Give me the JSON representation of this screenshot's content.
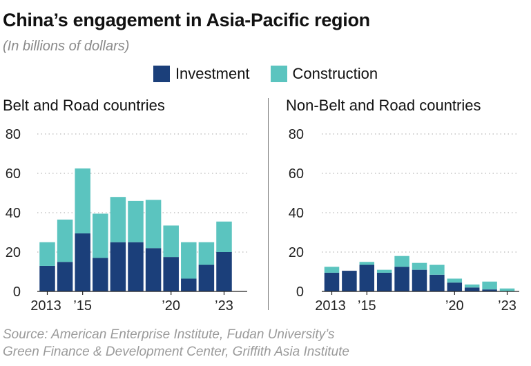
{
  "title": "China’s engagement in Asia-Pacific region",
  "subtitle": "(In billions of dollars)",
  "legend": [
    {
      "label": "Investment",
      "color": "#1b3f7a"
    },
    {
      "label": "Construction",
      "color": "#5bc4bf"
    }
  ],
  "source_lines": [
    "Source: American Enterprise Institute, Fudan University’s",
    "Green Finance & Development Center, Griffith Asia Institute"
  ],
  "chart_data": [
    {
      "type": "bar",
      "stacked": true,
      "title": "Belt and Road countries",
      "categories": [
        "2013",
        "2014",
        "2015",
        "2016",
        "2017",
        "2018",
        "2019",
        "2020",
        "2021",
        "2022",
        "2023"
      ],
      "x_tick_labels": [
        "2013",
        "’15",
        "",
        "",
        "",
        "",
        "’20",
        "",
        "",
        "’23"
      ],
      "x_tick_categories": [
        "2013",
        "2015",
        "2020",
        "2023"
      ],
      "x_tick_text": [
        "2013",
        "’15",
        "’20",
        "’23"
      ],
      "series": [
        {
          "name": "Investment",
          "values": [
            13,
            15,
            29.5,
            17,
            25,
            25,
            22,
            17.5,
            6.5,
            13.5,
            20
          ]
        },
        {
          "name": "Construction",
          "values": [
            12,
            21.5,
            33,
            22.5,
            23,
            21,
            24.5,
            16,
            18.5,
            11.5,
            15.5
          ]
        }
      ],
      "ylim": [
        0,
        80
      ],
      "yticks": [
        0,
        20,
        40,
        60,
        80
      ],
      "grid": true
    },
    {
      "type": "bar",
      "stacked": true,
      "title": "Non-Belt and Road countries",
      "categories": [
        "2013",
        "2014",
        "2015",
        "2016",
        "2017",
        "2018",
        "2019",
        "2020",
        "2021",
        "2022",
        "2023"
      ],
      "x_tick_categories": [
        "2013",
        "2015",
        "2020",
        "2023"
      ],
      "x_tick_text": [
        "2013",
        "’15",
        "’20",
        "’23"
      ],
      "series": [
        {
          "name": "Investment",
          "values": [
            9.5,
            10.5,
            13.5,
            9.5,
            12.5,
            11,
            8.5,
            4.5,
            2,
            1,
            0
          ]
        },
        {
          "name": "Construction",
          "values": [
            3,
            0,
            1.5,
            1.5,
            5.5,
            3.5,
            5,
            2,
            1.5,
            4,
            1.5
          ]
        }
      ],
      "ylim": [
        0,
        80
      ],
      "yticks": [
        0,
        20,
        40,
        60,
        80
      ],
      "grid": true
    }
  ]
}
